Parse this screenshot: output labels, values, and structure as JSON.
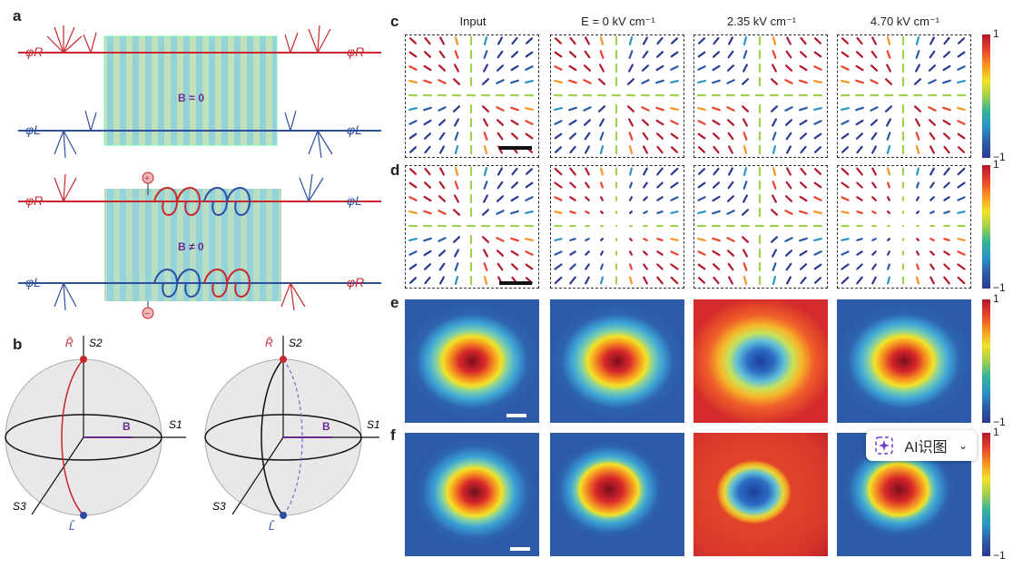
{
  "panel_labels": {
    "a": "a",
    "b": "b",
    "c": "c",
    "d": "d",
    "e": "e",
    "f": "f"
  },
  "panel_a": {
    "phi_r": "φR",
    "phi_l": "φL",
    "top_field": "B = 0",
    "bottom_field": "B ≠ 0",
    "plus": "+",
    "minus": "−"
  },
  "panel_b": {
    "r_hat": "R̂",
    "l_hat": "L̂",
    "s1": "S1",
    "s2": "S2",
    "s3": "S3",
    "b": "B"
  },
  "columns": [
    "Input",
    "E = 0 kV cm⁻¹",
    "2.35 kV cm⁻¹",
    "4.70 kV cm⁻¹"
  ],
  "colorbar": {
    "max": "1",
    "min": "−1"
  },
  "colors": {
    "red": "#c8282e",
    "blue": "#2e4ea0",
    "purple": "#6a2c91",
    "cyan": "#5bc4d1",
    "yellow": "#dfe08a"
  },
  "ai_widget": {
    "label": "AI识图",
    "icon": "sparkle-icon",
    "chevron": "chevron-down-icon"
  }
}
